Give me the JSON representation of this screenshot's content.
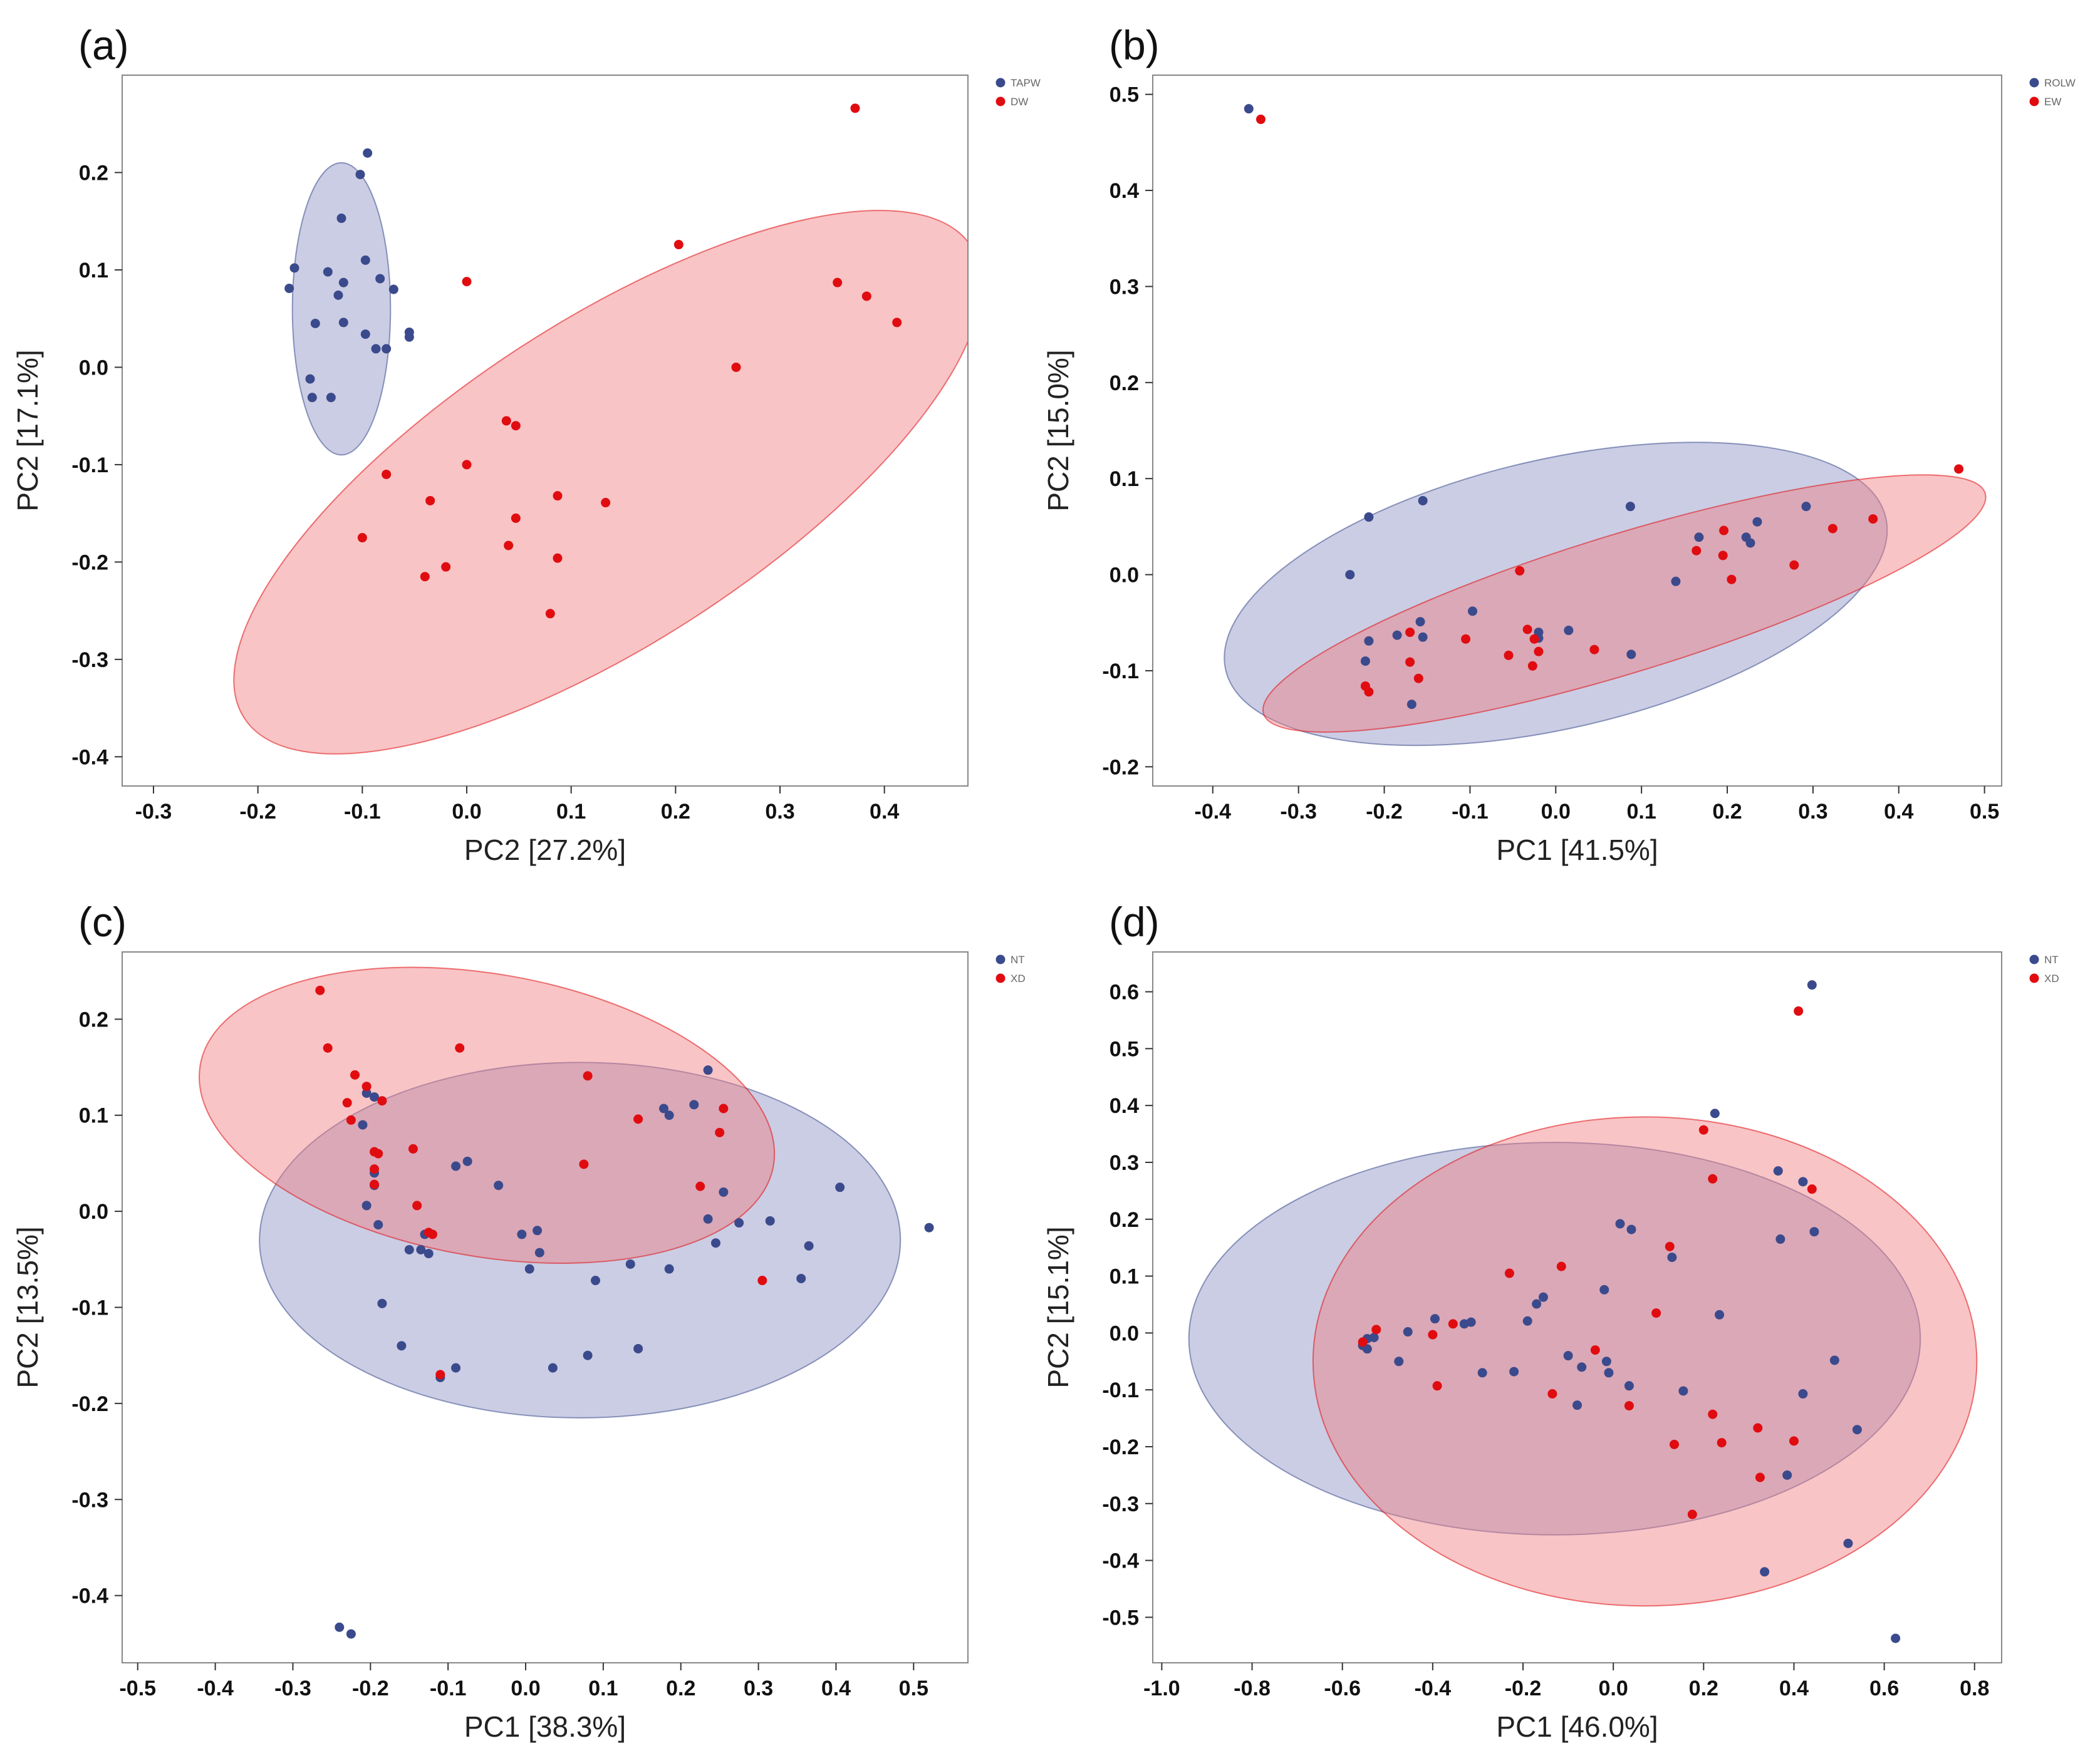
{
  "colors": {
    "blue": "#3b4a8c",
    "red": "#e00c10",
    "blue_fill": "#8c90c4",
    "red_fill": "#f07c80",
    "frame": "#888888"
  },
  "chart_data": [
    {
      "type": "scatter",
      "panel_label": "(a)",
      "xlabel": "PC2 [27.2%]",
      "ylabel": "PC2 [17.1%]",
      "xlim": [
        -0.33,
        0.48
      ],
      "ylim": [
        -0.43,
        0.3
      ],
      "xticks": [
        "-0.3",
        "-0.2",
        "-0.1",
        "0.0",
        "0.1",
        "0.2",
        "0.3",
        "0.4"
      ],
      "yticks": [
        "-0.4",
        "-0.3",
        "-0.2",
        "-0.1",
        "0.0",
        "0.1",
        "0.2"
      ],
      "legend_position": "top-right",
      "series": [
        {
          "name": "TAPW",
          "color": "blue",
          "ellipse": {
            "cx": -0.12,
            "cy": 0.06,
            "rx": 0.047,
            "ry": 0.15,
            "angle": 0
          },
          "points": [
            [
              -0.095,
              0.22
            ],
            [
              -0.102,
              0.198
            ],
            [
              -0.12,
              0.153
            ],
            [
              -0.165,
              0.102
            ],
            [
              -0.133,
              0.098
            ],
            [
              -0.097,
              0.11
            ],
            [
              -0.17,
              0.081
            ],
            [
              -0.118,
              0.087
            ],
            [
              -0.083,
              0.091
            ],
            [
              -0.07,
              0.08
            ],
            [
              -0.123,
              0.074
            ],
            [
              -0.145,
              0.045
            ],
            [
              -0.118,
              0.046
            ],
            [
              -0.097,
              0.034
            ],
            [
              -0.055,
              0.036
            ],
            [
              -0.055,
              0.031
            ],
            [
              -0.087,
              0.019
            ],
            [
              -0.077,
              0.019
            ],
            [
              -0.15,
              -0.012
            ],
            [
              -0.148,
              -0.031
            ],
            [
              -0.13,
              -0.031
            ]
          ]
        },
        {
          "name": "DW",
          "color": "red",
          "ellipse": {
            "cx": 0.135,
            "cy": -0.118,
            "rx": 0.415,
            "ry": 0.165,
            "angle": 33
          },
          "points": [
            [
              0.372,
              0.266
            ],
            [
              0.203,
              0.126
            ],
            [
              0.0,
              0.088
            ],
            [
              0.355,
              0.087
            ],
            [
              0.383,
              0.073
            ],
            [
              0.412,
              0.046
            ],
            [
              0.258,
              0.0
            ],
            [
              0.038,
              -0.055
            ],
            [
              0.047,
              -0.06
            ],
            [
              0.0,
              -0.1
            ],
            [
              -0.077,
              -0.11
            ],
            [
              -0.035,
              -0.137
            ],
            [
              0.087,
              -0.132
            ],
            [
              0.133,
              -0.139
            ],
            [
              0.047,
              -0.155
            ],
            [
              -0.1,
              -0.175
            ],
            [
              0.04,
              -0.183
            ],
            [
              0.087,
              -0.196
            ],
            [
              -0.02,
              -0.205
            ],
            [
              -0.04,
              -0.215
            ],
            [
              0.08,
              -0.253
            ]
          ]
        }
      ]
    },
    {
      "type": "scatter",
      "panel_label": "(b)",
      "xlabel": "PC1 [41.5%]",
      "ylabel": "PC2 [15.0%]",
      "xlim": [
        -0.47,
        0.52
      ],
      "ylim": [
        -0.22,
        0.52
      ],
      "xticks": [
        "-0.4",
        "-0.3",
        "-0.2",
        "-0.1",
        "0.0",
        "0.1",
        "0.2",
        "0.3",
        "0.4",
        "0.5"
      ],
      "yticks": [
        "-0.2",
        "-0.1",
        "0.0",
        "0.1",
        "0.2",
        "0.3",
        "0.4",
        "0.5"
      ],
      "legend_position": "top-right",
      "series": [
        {
          "name": "ROLW",
          "color": "blue",
          "ellipse": {
            "cx": 0.0,
            "cy": -0.02,
            "rx": 0.395,
            "ry": 0.14,
            "angle": 13
          },
          "points": [
            [
              -0.358,
              0.485
            ],
            [
              -0.218,
              0.06
            ],
            [
              -0.155,
              0.077
            ],
            [
              0.087,
              0.071
            ],
            [
              -0.24,
              0.0
            ],
            [
              0.292,
              0.071
            ],
            [
              0.235,
              0.055
            ],
            [
              0.167,
              0.039
            ],
            [
              0.222,
              0.039
            ],
            [
              0.227,
              0.033
            ],
            [
              0.14,
              -0.007
            ],
            [
              -0.097,
              -0.038
            ],
            [
              -0.158,
              -0.049
            ],
            [
              -0.02,
              -0.06
            ],
            [
              0.015,
              -0.058
            ],
            [
              -0.185,
              -0.063
            ],
            [
              -0.155,
              -0.065
            ],
            [
              -0.218,
              -0.069
            ],
            [
              -0.02,
              -0.066
            ],
            [
              0.088,
              -0.083
            ],
            [
              -0.222,
              -0.09
            ],
            [
              -0.168,
              -0.135
            ]
          ]
        },
        {
          "name": "EW",
          "color": "red",
          "ellipse": {
            "cx": 0.08,
            "cy": -0.03,
            "rx": 0.44,
            "ry": 0.072,
            "angle": 17
          },
          "points": [
            [
              -0.344,
              0.474
            ],
            [
              0.47,
              0.11
            ],
            [
              0.37,
              0.058
            ],
            [
              0.323,
              0.048
            ],
            [
              0.196,
              0.046
            ],
            [
              0.164,
              0.025
            ],
            [
              0.195,
              0.02
            ],
            [
              0.278,
              0.01
            ],
            [
              0.205,
              -0.005
            ],
            [
              -0.042,
              0.004
            ],
            [
              -0.033,
              -0.057
            ],
            [
              -0.17,
              -0.06
            ],
            [
              -0.105,
              -0.067
            ],
            [
              -0.025,
              -0.067
            ],
            [
              -0.02,
              -0.08
            ],
            [
              0.045,
              -0.078
            ],
            [
              -0.055,
              -0.084
            ],
            [
              -0.17,
              -0.091
            ],
            [
              -0.027,
              -0.095
            ],
            [
              -0.16,
              -0.108
            ],
            [
              -0.222,
              -0.116
            ],
            [
              -0.218,
              -0.122
            ]
          ]
        }
      ]
    },
    {
      "type": "scatter",
      "panel_label": "(c)",
      "xlabel": "PC1 [38.3%]",
      "ylabel": "PC2 [13.5%]",
      "xlim": [
        -0.52,
        0.57
      ],
      "ylim": [
        -0.47,
        0.27
      ],
      "xticks": [
        "-0.5",
        "-0.4",
        "-0.3",
        "-0.2",
        "-0.1",
        "0.0",
        "0.1",
        "0.2",
        "0.3",
        "0.4",
        "0.5"
      ],
      "yticks": [
        "-0.4",
        "-0.3",
        "-0.2",
        "-0.1",
        "0.0",
        "0.1",
        "0.2"
      ],
      "legend_position": "top-right",
      "series": [
        {
          "name": "NT",
          "color": "blue",
          "ellipse": {
            "cx": 0.07,
            "cy": -0.03,
            "rx": 0.413,
            "ry": 0.185,
            "angle": 0
          },
          "points": [
            [
              0.235,
              0.147
            ],
            [
              -0.205,
              0.123
            ],
            [
              -0.195,
              0.119
            ],
            [
              0.217,
              0.111
            ],
            [
              0.178,
              0.107
            ],
            [
              0.185,
              0.1
            ],
            [
              -0.21,
              0.09
            ],
            [
              -0.075,
              0.052
            ],
            [
              -0.09,
              0.047
            ],
            [
              -0.195,
              0.04
            ],
            [
              -0.195,
              0.027
            ],
            [
              -0.035,
              0.027
            ],
            [
              0.255,
              0.02
            ],
            [
              0.405,
              0.025
            ],
            [
              -0.205,
              0.006
            ],
            [
              0.235,
              -0.008
            ],
            [
              0.275,
              -0.012
            ],
            [
              0.315,
              -0.01
            ],
            [
              0.52,
              -0.017
            ],
            [
              -0.19,
              -0.014
            ],
            [
              -0.13,
              -0.024
            ],
            [
              0.015,
              -0.02
            ],
            [
              -0.005,
              -0.024
            ],
            [
              0.245,
              -0.033
            ],
            [
              0.365,
              -0.036
            ],
            [
              -0.15,
              -0.04
            ],
            [
              -0.135,
              -0.04
            ],
            [
              0.018,
              -0.043
            ],
            [
              -0.125,
              -0.044
            ],
            [
              0.135,
              -0.055
            ],
            [
              0.005,
              -0.06
            ],
            [
              0.185,
              -0.06
            ],
            [
              0.09,
              -0.072
            ],
            [
              0.355,
              -0.07
            ],
            [
              -0.185,
              -0.096
            ],
            [
              -0.16,
              -0.14
            ],
            [
              0.145,
              -0.143
            ],
            [
              0.08,
              -0.15
            ],
            [
              -0.09,
              -0.163
            ],
            [
              0.035,
              -0.163
            ],
            [
              -0.11,
              -0.173
            ],
            [
              -0.24,
              -0.433
            ],
            [
              -0.225,
              -0.44
            ]
          ]
        },
        {
          "name": "XD",
          "color": "red",
          "ellipse": {
            "cx": -0.05,
            "cy": 0.1,
            "rx": 0.375,
            "ry": 0.147,
            "angle": -10
          },
          "points": [
            [
              -0.265,
              0.23
            ],
            [
              -0.255,
              0.17
            ],
            [
              -0.085,
              0.17
            ],
            [
              -0.22,
              0.142
            ],
            [
              0.08,
              0.141
            ],
            [
              -0.205,
              0.13
            ],
            [
              -0.23,
              0.113
            ],
            [
              -0.185,
              0.115
            ],
            [
              0.255,
              0.107
            ],
            [
              0.145,
              0.096
            ],
            [
              -0.225,
              0.095
            ],
            [
              0.25,
              0.082
            ],
            [
              -0.195,
              0.062
            ],
            [
              -0.19,
              0.06
            ],
            [
              -0.145,
              0.065
            ],
            [
              0.075,
              0.049
            ],
            [
              -0.195,
              0.044
            ],
            [
              -0.195,
              0.028
            ],
            [
              0.225,
              0.026
            ],
            [
              -0.14,
              0.006
            ],
            [
              -0.125,
              -0.022
            ],
            [
              -0.12,
              -0.024
            ],
            [
              0.305,
              -0.072
            ],
            [
              -0.11,
              -0.17
            ]
          ]
        }
      ]
    },
    {
      "type": "scatter",
      "panel_label": "(d)",
      "xlabel": "PC1 [46.0%]",
      "ylabel": "PC2 [15.1%]",
      "xlim": [
        -1.02,
        0.86
      ],
      "ylim": [
        -0.58,
        0.67
      ],
      "xticks": [
        "-1.0",
        "-0.8",
        "-0.6",
        "-0.4",
        "-0.2",
        "0.0",
        "0.2",
        "0.4",
        "0.6",
        "0.8"
      ],
      "yticks": [
        "-0.5",
        "-0.4",
        "-0.3",
        "-0.2",
        "-0.1",
        "0.0",
        "0.1",
        "0.2",
        "0.3",
        "0.4",
        "0.5",
        "0.6"
      ],
      "legend_position": "top-right",
      "series": [
        {
          "name": "NT",
          "color": "blue",
          "ellipse": {
            "cx": -0.13,
            "cy": -0.01,
            "rx": 0.81,
            "ry": 0.345,
            "angle": 0
          },
          "points": [
            [
              0.44,
              0.612
            ],
            [
              0.225,
              0.386
            ],
            [
              0.365,
              0.285
            ],
            [
              0.42,
              0.266
            ],
            [
              0.015,
              0.192
            ],
            [
              0.04,
              0.182
            ],
            [
              0.445,
              0.178
            ],
            [
              0.37,
              0.165
            ],
            [
              0.13,
              0.133
            ],
            [
              -0.02,
              0.076
            ],
            [
              -0.155,
              0.063
            ],
            [
              -0.17,
              0.051
            ],
            [
              0.235,
              0.032
            ],
            [
              -0.315,
              0.019
            ],
            [
              -0.395,
              0.025
            ],
            [
              -0.33,
              0.016
            ],
            [
              -0.19,
              0.021
            ],
            [
              -0.455,
              0.002
            ],
            [
              -0.53,
              -0.008
            ],
            [
              -0.545,
              -0.01
            ],
            [
              -0.555,
              -0.022
            ],
            [
              -0.545,
              -0.028
            ],
            [
              -0.1,
              -0.04
            ],
            [
              -0.015,
              -0.05
            ],
            [
              -0.475,
              -0.05
            ],
            [
              -0.07,
              -0.06
            ],
            [
              0.49,
              -0.048
            ],
            [
              -0.01,
              -0.07
            ],
            [
              -0.22,
              -0.068
            ],
            [
              -0.29,
              -0.07
            ],
            [
              0.035,
              -0.093
            ],
            [
              0.155,
              -0.102
            ],
            [
              0.42,
              -0.107
            ],
            [
              -0.08,
              -0.127
            ],
            [
              0.54,
              -0.17
            ],
            [
              0.385,
              -0.25
            ],
            [
              0.52,
              -0.37
            ],
            [
              0.335,
              -0.42
            ],
            [
              0.625,
              -0.537
            ]
          ]
        },
        {
          "name": "XD",
          "color": "red",
          "ellipse": {
            "cx": 0.07,
            "cy": -0.05,
            "rx": 0.735,
            "ry": 0.43,
            "angle": 0
          },
          "points": [
            [
              0.41,
              0.566
            ],
            [
              0.2,
              0.357
            ],
            [
              0.22,
              0.271
            ],
            [
              0.44,
              0.253
            ],
            [
              0.125,
              0.152
            ],
            [
              -0.115,
              0.117
            ],
            [
              -0.23,
              0.105
            ],
            [
              0.095,
              0.035
            ],
            [
              -0.355,
              0.016
            ],
            [
              -0.525,
              0.006
            ],
            [
              -0.4,
              -0.003
            ],
            [
              -0.555,
              -0.016
            ],
            [
              -0.04,
              -0.03
            ],
            [
              -0.39,
              -0.093
            ],
            [
              0.035,
              -0.128
            ],
            [
              -0.135,
              -0.107
            ],
            [
              0.22,
              -0.143
            ],
            [
              0.32,
              -0.167
            ],
            [
              0.135,
              -0.196
            ],
            [
              0.24,
              -0.193
            ],
            [
              0.4,
              -0.19
            ],
            [
              0.325,
              -0.254
            ],
            [
              0.175,
              -0.319
            ]
          ]
        }
      ]
    }
  ]
}
